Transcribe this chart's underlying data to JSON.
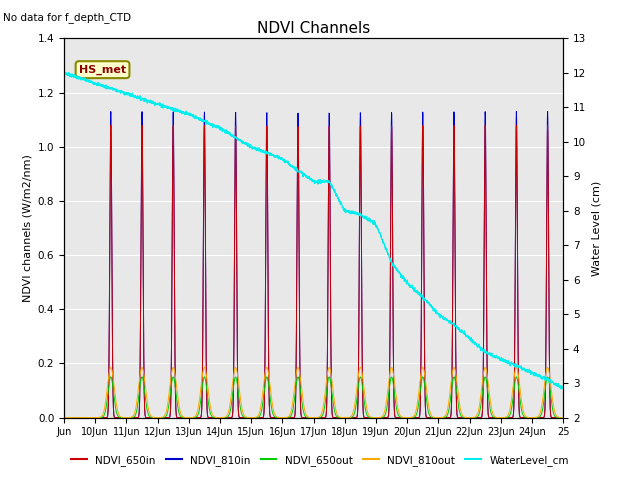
{
  "title": "NDVI Channels",
  "subtitle": "No data for f_depth_CTD",
  "ylabel_left": "NDVI channels (W/m2/nm)",
  "ylabel_right": "Water Level (cm)",
  "annotation": "HS_met",
  "ylim_left": [
    0.0,
    1.4
  ],
  "ylim_right": [
    2.0,
    13.0
  ],
  "yticks_left": [
    0.0,
    0.2,
    0.4,
    0.6,
    0.8,
    1.0,
    1.2,
    1.4
  ],
  "yticks_right": [
    2.0,
    3.0,
    4.0,
    5.0,
    6.0,
    7.0,
    8.0,
    9.0,
    10.0,
    11.0,
    12.0,
    13.0
  ],
  "colors": {
    "NDVI_650in": "#cc0000",
    "NDVI_810in": "#0000cc",
    "NDVI_650out": "#00cc00",
    "NDVI_810out": "#ffaa00",
    "WaterLevel_cm": "#00eeee"
  },
  "bg_color": "#e8e8e8",
  "peak_value_810in": 1.13,
  "peak_value_650in": 1.08,
  "peak_value_650out": 0.15,
  "peak_value_810out": 0.185,
  "water_level_pts_x": [
    0,
    1,
    2,
    3,
    4,
    5,
    6,
    7,
    8,
    8.5,
    9,
    9.5,
    10,
    10.5,
    11,
    11.5,
    12,
    12.5,
    13,
    13.5,
    14,
    14.5,
    15,
    15.5,
    16
  ],
  "water_level_pts_y": [
    12.0,
    11.7,
    11.4,
    11.1,
    10.8,
    10.4,
    9.85,
    9.5,
    8.85,
    8.85,
    8.0,
    7.9,
    7.6,
    6.5,
    5.9,
    5.5,
    5.0,
    4.7,
    4.3,
    3.9,
    3.7,
    3.5,
    3.3,
    3.1,
    2.85
  ]
}
